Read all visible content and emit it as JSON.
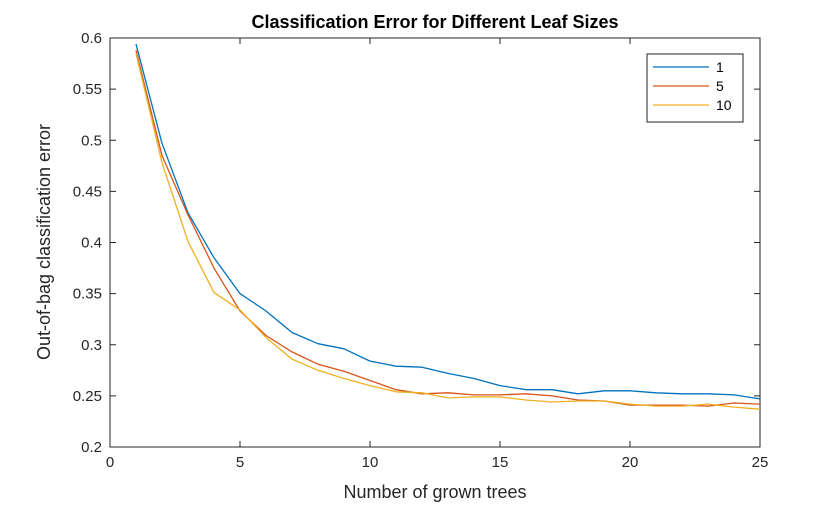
{
  "chart_data": {
    "type": "line",
    "title": "Classification Error for Different Leaf Sizes",
    "xlabel": "Number of grown trees",
    "ylabel": "Out-of-bag classification error",
    "xlim": [
      0,
      25
    ],
    "ylim": [
      0.2,
      0.6
    ],
    "xticks": [
      0,
      5,
      10,
      15,
      20,
      25
    ],
    "yticks": [
      0.2,
      0.25,
      0.3,
      0.35,
      0.4,
      0.45,
      0.5,
      0.55,
      0.6
    ],
    "xtick_labels": [
      "0",
      "5",
      "10",
      "15",
      "20",
      "25"
    ],
    "ytick_labels": [
      "0.2",
      "0.25",
      "0.3",
      "0.35",
      "0.4",
      "0.45",
      "0.5",
      "0.55",
      "0.6"
    ],
    "grid": false,
    "legend_position": "top-right",
    "x": [
      1,
      2,
      3,
      4,
      5,
      6,
      7,
      8,
      9,
      10,
      11,
      12,
      13,
      14,
      15,
      16,
      17,
      18,
      19,
      20,
      21,
      22,
      23,
      24,
      25
    ],
    "series": [
      {
        "name": "1",
        "color": "#0072BD",
        "values": [
          0.594,
          0.497,
          0.429,
          0.385,
          0.35,
          0.333,
          0.312,
          0.301,
          0.296,
          0.284,
          0.279,
          0.278,
          0.272,
          0.267,
          0.26,
          0.256,
          0.256,
          0.252,
          0.255,
          0.255,
          0.253,
          0.252,
          0.252,
          0.251,
          0.247
        ]
      },
      {
        "name": "5",
        "color": "#D95319",
        "values": [
          0.588,
          0.485,
          0.427,
          0.375,
          0.333,
          0.309,
          0.293,
          0.281,
          0.274,
          0.265,
          0.256,
          0.252,
          0.253,
          0.251,
          0.251,
          0.252,
          0.25,
          0.246,
          0.245,
          0.241,
          0.241,
          0.241,
          0.24,
          0.243,
          0.242
        ]
      },
      {
        "name": "10",
        "color": "#EDB120",
        "values": [
          0.585,
          0.478,
          0.401,
          0.351,
          0.334,
          0.307,
          0.286,
          0.275,
          0.267,
          0.26,
          0.254,
          0.253,
          0.248,
          0.249,
          0.249,
          0.246,
          0.244,
          0.245,
          0.245,
          0.242,
          0.24,
          0.24,
          0.242,
          0.239,
          0.237
        ]
      }
    ]
  }
}
